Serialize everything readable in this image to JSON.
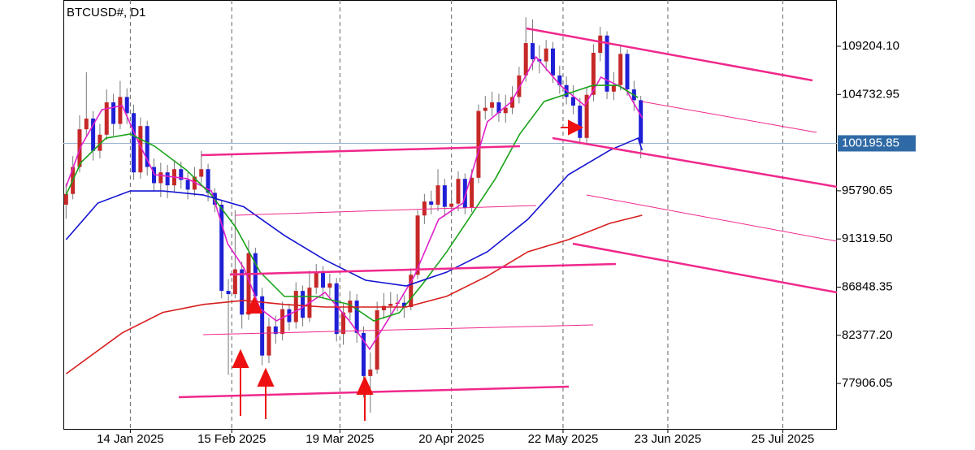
{
  "chart_data": {
    "type": "candlestick",
    "title": "BTCUSD#, D1",
    "up_color": "#c62828",
    "down_color": "#1f1fd6",
    "open": [
      94500,
      95500,
      98000,
      101500,
      102500,
      99500,
      101000,
      104000,
      102000,
      104500,
      103000,
      97500,
      101800,
      98000,
      96500,
      97500,
      96300,
      97800,
      96800,
      95900,
      97100,
      97800,
      95600,
      94500,
      86500,
      86200,
      88500,
      84300,
      90000,
      86000,
      80500,
      83200,
      82500,
      84800,
      83600,
      86500,
      84000,
      86800,
      88300,
      86800,
      87200,
      82500,
      84500,
      85600,
      82600,
      78600,
      79200,
      84700,
      85100,
      85300,
      85400,
      85000,
      88000,
      93500,
      94800,
      94500,
      96300,
      94300,
      94600,
      96900,
      94200,
      97000,
      103200,
      103500,
      104000,
      103000,
      103500,
      104500,
      106500,
      109500,
      108000,
      107800,
      109000,
      106500,
      105600,
      104500,
      103700,
      100700,
      104700,
      108600,
      110200,
      105000,
      105600,
      108500,
      105200,
      104200
    ],
    "high": [
      96500,
      99000,
      102800,
      106800,
      103200,
      102000,
      105200,
      104800,
      106000,
      105300,
      103800,
      102600,
      102300,
      98800,
      98400,
      98200,
      98600,
      98500,
      97500,
      98000,
      99500,
      98300,
      96000,
      94900,
      87600,
      94000,
      89200,
      91200,
      90500,
      86800,
      84000,
      84200,
      85500,
      85300,
      87300,
      87000,
      88400,
      89000,
      88800,
      88100,
      87700,
      85300,
      86500,
      86200,
      83200,
      80800,
      85500,
      86300,
      86400,
      86200,
      86100,
      88600,
      94000,
      95500,
      95800,
      97800,
      96900,
      95700,
      97600,
      97400,
      97800,
      103800,
      104600,
      105000,
      104800,
      104700,
      105500,
      107300,
      111900,
      111700,
      109300,
      109800,
      109600,
      107400,
      106400,
      105600,
      104400,
      105400,
      109400,
      111000,
      110600,
      106800,
      109400,
      108900,
      106000,
      104600
    ],
    "low": [
      93200,
      95000,
      97500,
      100800,
      98600,
      98800,
      100500,
      100900,
      101500,
      102000,
      96800,
      96900,
      97200,
      95800,
      95200,
      95100,
      95700,
      96000,
      95000,
      95300,
      96500,
      94800,
      93800,
      85800,
      78700,
      85800,
      83000,
      83800,
      85300,
      79600,
      79800,
      81600,
      81900,
      82800,
      83000,
      83200,
      83600,
      86200,
      85900,
      86000,
      81800,
      81500,
      83800,
      81700,
      76600,
      75200,
      78800,
      83900,
      84200,
      84600,
      84000,
      84700,
      87600,
      92700,
      93600,
      93900,
      93400,
      93500,
      93900,
      93600,
      93800,
      96500,
      102400,
      102700,
      102200,
      102100,
      102900,
      103900,
      105900,
      107000,
      106700,
      106900,
      105800,
      104800,
      103800,
      102900,
      100100,
      100200,
      104100,
      107800,
      104300,
      104200,
      105100,
      104600,
      103200,
      98800
    ],
    "close": [
      95500,
      98000,
      101500,
      102500,
      99500,
      101000,
      104000,
      102000,
      104500,
      103000,
      97500,
      101800,
      98000,
      96500,
      97500,
      96300,
      97800,
      96800,
      95900,
      97100,
      97800,
      95600,
      94500,
      86500,
      86200,
      88500,
      84300,
      90000,
      86000,
      80500,
      83200,
      82500,
      84800,
      83600,
      86500,
      84000,
      86800,
      88300,
      86800,
      87200,
      82500,
      84500,
      85600,
      82600,
      78600,
      79200,
      84700,
      85100,
      85300,
      85400,
      85000,
      88000,
      93500,
      94800,
      94500,
      96300,
      94300,
      94600,
      96900,
      94200,
      97000,
      103200,
      103500,
      104000,
      103000,
      103500,
      104500,
      106500,
      109500,
      108000,
      107800,
      109000,
      106500,
      105600,
      104500,
      103700,
      100700,
      104700,
      108600,
      110200,
      105000,
      105600,
      108500,
      105200,
      104200,
      100200
    ],
    "series": [
      {
        "color": "#e020c8",
        "x": [
          0,
          2.2,
          5.3,
          8.3,
          10.7,
          13.1,
          17.9,
          21.5,
          23.9,
          26.3,
          28.7,
          31.1,
          34.7,
          38.3,
          41.9,
          44.9,
          47.9,
          51.5,
          55.1,
          58.7,
          62.3,
          65.9,
          69.5,
          73.1,
          76.7,
          79.1,
          82.8,
          85.2
        ],
        "values": [
          96160,
          99930,
          103320,
          103700,
          100300,
          97290,
          96920,
          95780,
          90880,
          88620,
          84850,
          83720,
          84850,
          86360,
          83720,
          81080,
          84100,
          87870,
          93140,
          94650,
          102190,
          104080,
          108220,
          105580,
          103700,
          106340,
          105210,
          102570
        ]
      },
      {
        "color": "#1aa31a",
        "x": [
          0,
          2.2,
          5.9,
          9.5,
          13.1,
          17.9,
          21.5,
          25.1,
          28.7,
          32.3,
          37.1,
          41.9,
          45.5,
          49.3,
          52.7,
          56.3,
          59.9,
          63.5,
          67.1,
          70.7,
          74.3,
          77.9,
          81.6,
          84.6
        ],
        "values": [
          95400,
          98420,
          100680,
          101060,
          99930,
          97670,
          95400,
          92390,
          88240,
          85980,
          85980,
          85240,
          83720,
          84480,
          87110,
          90130,
          93520,
          96920,
          101060,
          104080,
          104830,
          105580,
          105580,
          104450
        ]
      },
      {
        "color": "#1414d2",
        "x": [
          0,
          4.7,
          9.5,
          14.3,
          20.3,
          26.3,
          32.3,
          38.3,
          44.3,
          50.3,
          56.3,
          62.3,
          68.3,
          74.3,
          80.4,
          84.6,
          85.2
        ],
        "values": [
          91260,
          94650,
          95780,
          95780,
          95400,
          94300,
          91640,
          89370,
          87490,
          86960,
          88240,
          90130,
          93140,
          97290,
          99550,
          100680,
          99550
        ]
      },
      {
        "color": "#d81e1e",
        "x": [
          0,
          8.3,
          14.3,
          20.3,
          26.3,
          32.3,
          38.3,
          44.3,
          50.3,
          56.3,
          62.3,
          68.3,
          74.3,
          80.4,
          85.2
        ],
        "values": [
          78800,
          82600,
          84500,
          85240,
          85620,
          85240,
          85000,
          85000,
          85000,
          86000,
          87870,
          90130,
          91260,
          92770,
          93520
        ]
      }
    ],
    "last_price": {
      "value": 100195.85,
      "label": "100195.85"
    },
    "xlim": [
      -0.4,
      114
    ],
    "xticks": [
      {
        "value": 9.5,
        "label": "14 Jan 2025"
      },
      {
        "value": 24.5,
        "label": "15 Feb 2025"
      },
      {
        "value": 40.5,
        "label": "19 Mar 2025"
      },
      {
        "value": 57,
        "label": "20 Apr 2025"
      },
      {
        "value": 73.5,
        "label": "22 May 2025"
      },
      {
        "value": 89,
        "label": "23 Jun 2025"
      },
      {
        "value": 106,
        "label": "25 Jul 2025"
      }
    ],
    "ylim": [
      73690,
      113502
    ],
    "yticks": [
      {
        "value": 109204.1,
        "label": "109204.10"
      },
      {
        "value": 104732.95,
        "label": "104732.95"
      },
      {
        "value": 95790.65,
        "label": "95790.65"
      },
      {
        "value": 91319.5,
        "label": "91319.50"
      },
      {
        "value": 86848.35,
        "label": "86848.35"
      },
      {
        "value": 82377.2,
        "label": "82377.20"
      },
      {
        "value": 77906.05,
        "label": "77906.05"
      }
    ],
    "grid": true
  }
}
